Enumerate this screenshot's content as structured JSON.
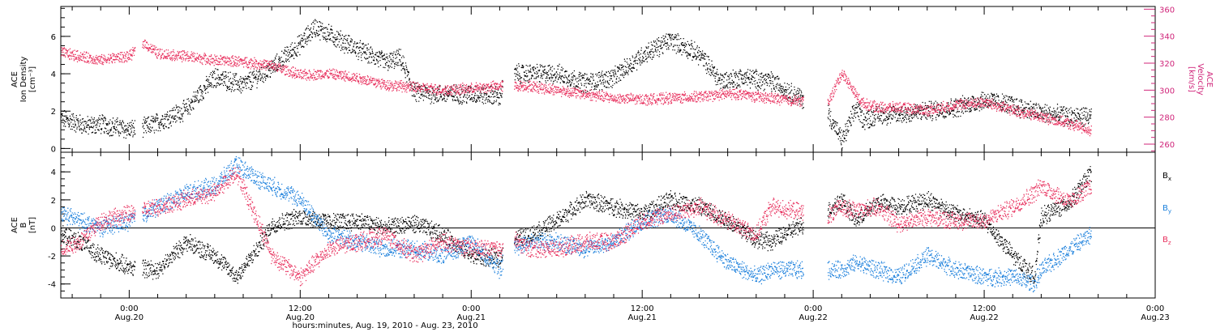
{
  "chart_data": [
    {
      "type": "scatter",
      "panel": "top",
      "ylabel_lines": [
        "ACE",
        "Ion Density",
        "[cm⁻³]"
      ],
      "ylim": [
        -0.2,
        7.6
      ],
      "yticks": [
        0,
        2,
        4,
        6
      ],
      "ylabel_right_lines": [
        "ACE",
        "Velocity",
        "[km/s]"
      ],
      "y2lim": [
        254,
        362
      ],
      "y2ticks": [
        260,
        280,
        300,
        320,
        340,
        360
      ],
      "series": [
        {
          "name": "Ion Density",
          "axis": "left",
          "color": "#000000",
          "x": [
            -4.8,
            -3.0,
            -2.0,
            0.0,
            1.0,
            2.0,
            4.0,
            5.0,
            6.0,
            8.0,
            10.0,
            12.0,
            13.0,
            14.0,
            16.0,
            18.0,
            19.0,
            20.0,
            22.0,
            24.0,
            26.0,
            26.5,
            28.0,
            30.0,
            32.0,
            34.0,
            36.0,
            38.0,
            40.0,
            41.5,
            43.0,
            45.0,
            49.0,
            50.0,
            51.0,
            51.5,
            52.5,
            54.0,
            56.0,
            58.0,
            60.0,
            62.0,
            64.0,
            66.0,
            67.5
          ],
          "y": [
            1.6,
            1.2,
            1.3,
            1.0,
            1.1,
            1.4,
            2.1,
            3.0,
            3.8,
            3.4,
            4.3,
            5.6,
            6.5,
            6.1,
            5.3,
            4.6,
            4.8,
            3.0,
            2.9,
            2.9,
            2.8,
            4.0,
            4.0,
            4.0,
            3.5,
            3.8,
            5.0,
            5.8,
            5.0,
            3.6,
            3.8,
            3.6,
            1.9,
            0.4,
            2.2,
            1.5,
            1.8,
            1.8,
            2.0,
            2.2,
            2.6,
            2.3,
            1.9,
            1.7,
            1.7
          ]
        },
        {
          "name": "Velocity",
          "axis": "right",
          "color": "#e8325f",
          "x": [
            -4.8,
            -4.0,
            -2.0,
            -1.0,
            0.0,
            1.0,
            2.0,
            4.0,
            6.0,
            8.0,
            10.0,
            12.0,
            14.0,
            16.0,
            18.0,
            20.0,
            22.0,
            24.0,
            26.0,
            26.5,
            28.0,
            30.0,
            32.0,
            34.0,
            36.0,
            38.0,
            40.0,
            42.0,
            43.0,
            44.0,
            45.0,
            49.0,
            50.0,
            51.0,
            51.5,
            52.5,
            54.0,
            56.0,
            58.0,
            60.0,
            62.0,
            64.0,
            66.0,
            67.5
          ],
          "y": [
            328,
            326,
            322,
            324,
            325,
            335,
            327,
            325,
            322,
            321,
            318,
            311,
            312,
            309,
            304,
            302,
            300,
            301,
            303,
            303,
            303,
            300,
            297,
            294,
            293,
            294,
            295,
            297,
            297,
            295,
            294,
            290,
            313,
            296,
            290,
            287,
            287,
            285,
            289,
            291,
            285,
            280,
            275,
            270
          ]
        }
      ]
    },
    {
      "type": "scatter",
      "panel": "bottom",
      "ylabel_lines": [
        "ACE",
        "B",
        "[nT]"
      ],
      "ylim": [
        -5.0,
        5.4
      ],
      "yticks": [
        -4,
        -2,
        0,
        2,
        4
      ],
      "series": [
        {
          "name": "Bx",
          "color": "#000000",
          "x": [
            -4.8,
            -3.5,
            -2.0,
            0.0,
            2.0,
            4.0,
            6.0,
            7.5,
            9.0,
            10.0,
            12.0,
            14.0,
            16.0,
            18.0,
            20.0,
            22.0,
            24.0,
            26.0,
            26.5,
            28.0,
            30.0,
            32.0,
            34.0,
            36.0,
            38.0,
            40.0,
            42.0,
            44.0,
            45.0,
            49.0,
            50.0,
            51.0,
            52.5,
            54.0,
            56.0,
            58.0,
            60.0,
            62.0,
            63.5,
            64.0,
            66.0,
            67.5
          ],
          "y": [
            -0.5,
            -1.0,
            -2.0,
            -2.8,
            -3.0,
            -1.0,
            -2.0,
            -3.5,
            -1.5,
            0.2,
            0.8,
            0.4,
            0.5,
            0.0,
            0.3,
            -0.5,
            -2.0,
            -2.2,
            -0.8,
            -0.6,
            0.5,
            2.0,
            1.5,
            1.0,
            2.0,
            1.5,
            0.5,
            -0.8,
            -1.0,
            1.2,
            2.0,
            0.5,
            1.8,
            1.5,
            2.0,
            1.0,
            0.5,
            -2.0,
            -3.5,
            0.8,
            1.8,
            4.0
          ]
        },
        {
          "name": "By",
          "color": "#1a7fdc",
          "x": [
            -4.8,
            -3.5,
            -2.0,
            0.0,
            2.0,
            4.0,
            6.0,
            7.5,
            9.0,
            10.0,
            12.0,
            14.0,
            16.0,
            18.0,
            20.0,
            22.0,
            24.0,
            26.0,
            26.5,
            28.0,
            30.0,
            32.0,
            34.0,
            36.0,
            38.0,
            40.0,
            42.0,
            44.0,
            45.0,
            49.0,
            50.0,
            51.0,
            52.5,
            54.0,
            56.0,
            58.0,
            60.0,
            62.0,
            63.5,
            64.0,
            66.0,
            67.5
          ],
          "y": [
            1.0,
            0.5,
            0.0,
            0.5,
            1.5,
            2.5,
            3.0,
            4.5,
            3.5,
            3.0,
            2.0,
            -0.5,
            -1.0,
            -1.5,
            -1.5,
            -2.0,
            -1.0,
            -3.0,
            -1.5,
            -1.0,
            -1.0,
            -1.5,
            -1.0,
            0.5,
            1.0,
            -0.5,
            -2.5,
            -3.5,
            -3.0,
            -3.0,
            -3.0,
            -2.5,
            -3.0,
            -3.5,
            -2.0,
            -3.0,
            -3.5,
            -3.5,
            -4.0,
            -3.0,
            -1.5,
            -0.5
          ]
        },
        {
          "name": "Bz",
          "color": "#e8325f",
          "x": [
            -4.8,
            -3.5,
            -2.0,
            0.0,
            2.0,
            4.0,
            6.0,
            7.5,
            9.0,
            10.0,
            12.0,
            14.0,
            16.0,
            18.0,
            20.0,
            22.0,
            24.0,
            26.0,
            26.5,
            28.0,
            30.0,
            32.0,
            34.0,
            36.0,
            38.0,
            40.0,
            42.0,
            44.0,
            45.0,
            49.0,
            50.0,
            51.0,
            52.5,
            54.0,
            56.0,
            58.0,
            60.0,
            62.0,
            63.5,
            64.0,
            66.0,
            67.5
          ],
          "y": [
            -1.5,
            -1.0,
            0.5,
            1.0,
            1.5,
            2.0,
            2.5,
            4.0,
            0.5,
            -2.0,
            -3.5,
            -1.5,
            -1.0,
            -0.5,
            -2.0,
            -1.0,
            -1.5,
            -1.5,
            -0.5,
            -1.5,
            -1.5,
            -1.0,
            -1.0,
            0.5,
            1.0,
            1.5,
            0.5,
            -0.5,
            1.5,
            0.8,
            1.5,
            1.2,
            1.5,
            0.3,
            0.8,
            0.5,
            0.5,
            1.5,
            2.5,
            3.0,
            1.8,
            3.0
          ]
        }
      ],
      "legend_labels": [
        {
          "text": "B",
          "sub": "x",
          "color": "#000000"
        },
        {
          "text": "B",
          "sub": "y",
          "color": "#1a7fdc"
        },
        {
          "text": "B",
          "sub": "z",
          "color": "#e8325f"
        }
      ]
    }
  ],
  "x_axis": {
    "xlim": [
      -4.8,
      72.0
    ],
    "ticks": [
      {
        "value": 0,
        "time": "0:00",
        "date": "Aug.20"
      },
      {
        "value": 12,
        "time": "12:00",
        "date": "Aug.20"
      },
      {
        "value": 24,
        "time": "0:00",
        "date": "Aug.21"
      },
      {
        "value": 36,
        "time": "12:00",
        "date": "Aug.21"
      },
      {
        "value": 48,
        "time": "0:00",
        "date": "Aug.22"
      },
      {
        "value": 60,
        "time": "12:00",
        "date": "Aug.22"
      },
      {
        "value": 72,
        "time": "0:00",
        "date": "Aug.23"
      }
    ],
    "xlabel": "hours:minutes, Aug. 19, 2010 - Aug. 23, 2010"
  }
}
